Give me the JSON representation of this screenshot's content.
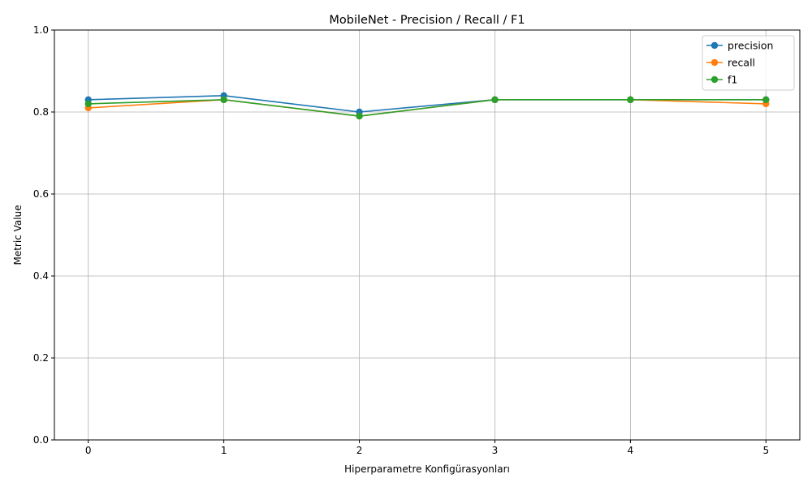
{
  "chart_data": {
    "type": "line",
    "title": "MobileNet - Precision / Recall / F1",
    "xlabel": "Hiperparametre Konfigürasyonları",
    "ylabel": "Metric Value",
    "x": [
      0,
      1,
      2,
      3,
      4,
      5
    ],
    "xlim": [
      -0.25,
      5.25
    ],
    "ylim": [
      0.0,
      1.0
    ],
    "x_ticks": [
      0,
      1,
      2,
      3,
      4,
      5
    ],
    "y_ticks": [
      0.0,
      0.2,
      0.4,
      0.6,
      0.8,
      1.0
    ],
    "y_tick_labels": [
      "0.0",
      "0.2",
      "0.4",
      "0.6",
      "0.8",
      "1.0"
    ],
    "grid": true,
    "legend_position": "top-right",
    "series": [
      {
        "name": "precision",
        "color": "#1f77b4",
        "values": [
          0.83,
          0.84,
          0.8,
          0.83,
          0.83,
          0.83
        ]
      },
      {
        "name": "recall",
        "color": "#ff7f0e",
        "values": [
          0.81,
          0.83,
          0.79,
          0.83,
          0.83,
          0.82
        ]
      },
      {
        "name": "f1",
        "color": "#2ca02c",
        "values": [
          0.82,
          0.83,
          0.79,
          0.83,
          0.83,
          0.83
        ]
      }
    ]
  }
}
